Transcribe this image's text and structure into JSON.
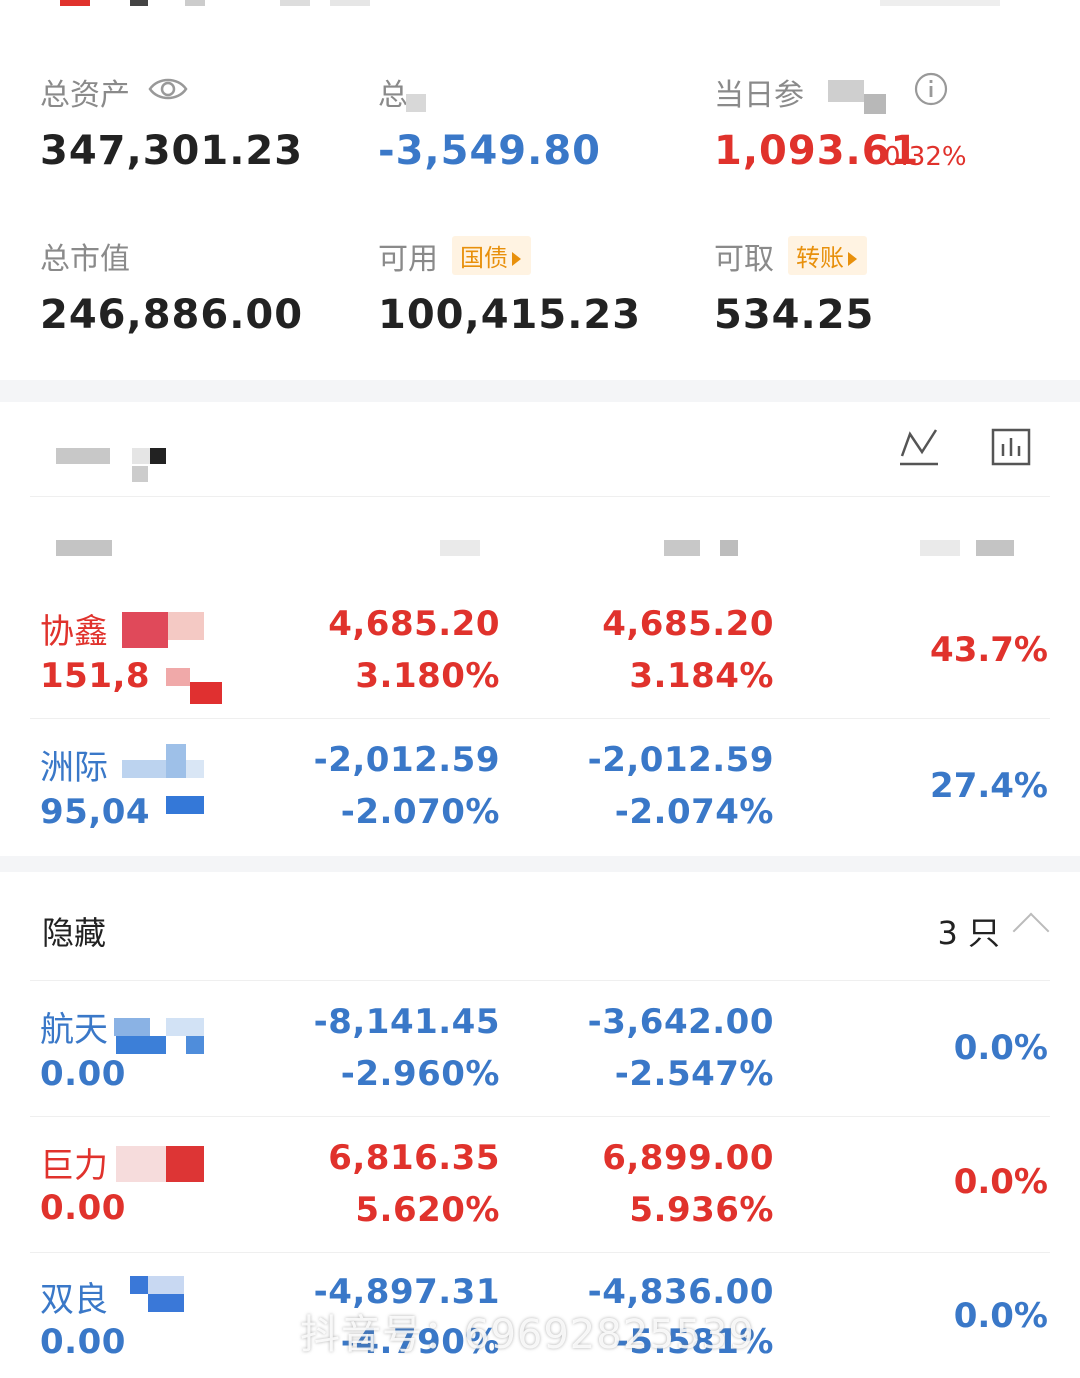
{
  "summary": {
    "total_assets": {
      "label": "总资产",
      "value": "347,301.23"
    },
    "total_pl": {
      "label": "总",
      "value": "-3,549.80"
    },
    "day_pl": {
      "label": "当日参",
      "value": "1,093.61",
      "pct": "0.32%"
    },
    "market_value": {
      "label": "总市值",
      "value": "246,886.00"
    },
    "available": {
      "label": "可用",
      "value": "100,415.23",
      "chip": "国债"
    },
    "withdrawable": {
      "label": "可取",
      "value": "534.25",
      "chip": "转账"
    }
  },
  "holdings": [
    {
      "name": "协鑫",
      "sub": "151,8",
      "c1a": "4,685.20",
      "c1b": "3.180%",
      "c2a": "4,685.20",
      "c2b": "3.184%",
      "pct": "43.7%",
      "color": "#e0322c"
    },
    {
      "name": "洲际",
      "sub": "95,04",
      "c1a": "-2,012.59",
      "c1b": "-2.070%",
      "c2a": "-2,012.59",
      "c2b": "-2.074%",
      "pct": "27.4%",
      "color": "#3a78c8"
    }
  ],
  "hidden": {
    "title": "隐藏",
    "count": "3 只",
    "rows": [
      {
        "name": "航天",
        "sub": "0.00",
        "c1a": "-8,141.45",
        "c1b": "-2.960%",
        "c2a": "-3,642.00",
        "c2b": "-2.547%",
        "pct": "0.0%",
        "color": "#3a78c8"
      },
      {
        "name": "巨力",
        "sub": "0.00",
        "c1a": "6,816.35",
        "c1b": "5.620%",
        "c2a": "6,899.00",
        "c2b": "5.936%",
        "pct": "0.0%",
        "color": "#e0322c"
      },
      {
        "name": "双良",
        "sub": "0.00",
        "c1a": "-4,897.31",
        "c1b": "-4.790%",
        "c2a": "-4,836.00",
        "c2b": "-5.581%",
        "pct": "0.0%",
        "color": "#3a78c8"
      }
    ]
  },
  "watermark": "抖音号：69692825539",
  "icons": [
    "eye-icon",
    "info-icon",
    "line-chart-icon",
    "bar-chart-icon",
    "chevron-up-icon"
  ],
  "colors": {
    "up": "#e0322c",
    "down": "#3a78c8",
    "chip": "#e8900c"
  }
}
